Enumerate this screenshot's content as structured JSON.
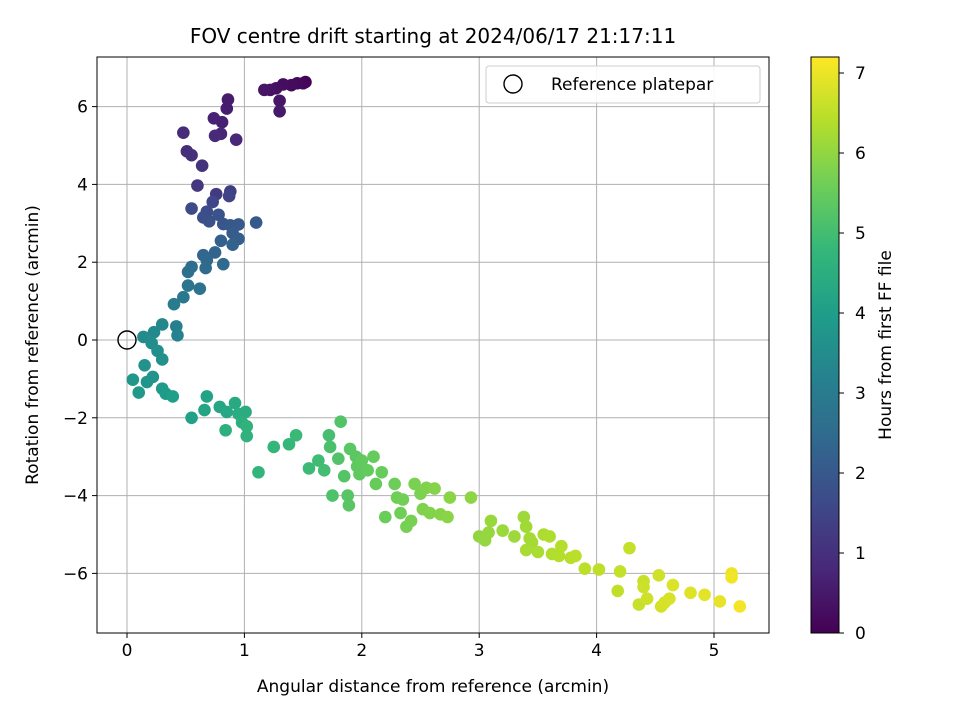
{
  "chart_data": {
    "type": "scatter",
    "title": "FOV centre drift starting at 2024/06/17 21:17:11",
    "xlabel": "Angular distance from reference (arcmin)",
    "ylabel": "Rotation from reference (arcmin)",
    "xlim": [
      -0.26,
      5.47
    ],
    "ylim": [
      -7.5,
      7.3
    ],
    "xticks": [
      "0",
      "1",
      "2",
      "3",
      "4",
      "5"
    ],
    "yticks": [
      "−6",
      "−4",
      "−2",
      "0",
      "2",
      "4",
      "6"
    ],
    "grid": true,
    "legend": {
      "placement": "top-right",
      "entries": [
        "Reference platepar"
      ]
    },
    "reference_point": {
      "x": 0,
      "y": 0
    },
    "colorbar": {
      "label": "Hours from first FF file",
      "range": [
        0,
        7.2
      ],
      "ticks": [
        "0",
        "1",
        "2",
        "3",
        "4",
        "5",
        "6",
        "7"
      ],
      "colormap": [
        "#440154",
        "#482878",
        "#3e4989",
        "#31688e",
        "#26828e",
        "#1f9e89",
        "#35b779",
        "#6ece58",
        "#b5de2b",
        "#fde725"
      ]
    },
    "points": [
      [
        1.52,
        6.63,
        0.05
      ],
      [
        1.5,
        6.6,
        0.1
      ],
      [
        1.45,
        6.6,
        0.15
      ],
      [
        1.4,
        6.55,
        0.2
      ],
      [
        1.33,
        6.57,
        0.25
      ],
      [
        1.27,
        6.47,
        0.3
      ],
      [
        1.22,
        6.43,
        0.35
      ],
      [
        1.17,
        6.43,
        0.4
      ],
      [
        1.3,
        6.15,
        0.45
      ],
      [
        1.3,
        5.88,
        0.5
      ],
      [
        0.86,
        6.18,
        0.55
      ],
      [
        0.85,
        5.95,
        0.6
      ],
      [
        0.81,
        5.6,
        0.65
      ],
      [
        0.74,
        5.7,
        0.7
      ],
      [
        0.8,
        5.3,
        0.75
      ],
      [
        0.93,
        5.15,
        0.8
      ],
      [
        0.75,
        5.25,
        0.85
      ],
      [
        0.48,
        5.33,
        0.9
      ],
      [
        0.51,
        4.85,
        0.95
      ],
      [
        0.55,
        4.75,
        1.0
      ],
      [
        0.64,
        4.48,
        1.05
      ],
      [
        0.6,
        3.97,
        1.15
      ],
      [
        0.76,
        3.75,
        1.25
      ],
      [
        0.88,
        3.82,
        1.35
      ],
      [
        0.87,
        3.7,
        1.45
      ],
      [
        0.73,
        3.55,
        1.55
      ],
      [
        0.55,
        3.38,
        1.65
      ],
      [
        0.68,
        3.3,
        1.7
      ],
      [
        0.65,
        3.15,
        1.75
      ],
      [
        0.7,
        3.05,
        1.8
      ],
      [
        0.78,
        3.22,
        1.85
      ],
      [
        0.82,
        2.98,
        1.9
      ],
      [
        0.88,
        2.95,
        1.95
      ],
      [
        0.95,
        2.97,
        2.0
      ],
      [
        1.1,
        3.02,
        2.05
      ],
      [
        0.9,
        2.75,
        2.1
      ],
      [
        0.95,
        2.6,
        2.15
      ],
      [
        0.8,
        2.55,
        2.2
      ],
      [
        0.9,
        2.45,
        2.25
      ],
      [
        0.75,
        2.25,
        2.3
      ],
      [
        0.65,
        2.18,
        2.35
      ],
      [
        0.68,
        2.05,
        2.4
      ],
      [
        0.82,
        1.95,
        2.45
      ],
      [
        0.67,
        1.85,
        2.5
      ],
      [
        0.55,
        1.88,
        2.55
      ],
      [
        0.52,
        1.75,
        2.6
      ],
      [
        0.62,
        1.32,
        2.7
      ],
      [
        0.52,
        1.4,
        2.8
      ],
      [
        0.48,
        1.1,
        2.9
      ],
      [
        0.4,
        0.92,
        3.0
      ],
      [
        0.42,
        0.35,
        3.1
      ],
      [
        0.43,
        0.12,
        3.2
      ],
      [
        0.3,
        0.4,
        3.3
      ],
      [
        0.23,
        0.2,
        3.4
      ],
      [
        0.14,
        0.08,
        3.45
      ],
      [
        0.21,
        -0.08,
        3.5
      ],
      [
        0.26,
        -0.28,
        3.55
      ],
      [
        0.3,
        -0.5,
        3.6
      ],
      [
        0.15,
        -0.65,
        3.65
      ],
      [
        0.22,
        -0.95,
        3.7
      ],
      [
        0.17,
        -1.08,
        3.75
      ],
      [
        0.05,
        -1.02,
        3.8
      ],
      [
        0.1,
        -1.35,
        3.85
      ],
      [
        0.3,
        -1.25,
        3.9
      ],
      [
        0.33,
        -1.38,
        3.95
      ],
      [
        0.39,
        -1.45,
        4.0
      ],
      [
        0.55,
        -2.0,
        4.1
      ],
      [
        0.68,
        -1.45,
        4.15
      ],
      [
        0.66,
        -1.8,
        4.2
      ],
      [
        0.79,
        -1.72,
        4.25
      ],
      [
        0.85,
        -1.85,
        4.3
      ],
      [
        0.92,
        -1.62,
        4.35
      ],
      [
        0.95,
        -1.9,
        4.4
      ],
      [
        1.01,
        -1.85,
        4.45
      ],
      [
        0.98,
        -2.12,
        4.5
      ],
      [
        0.84,
        -2.32,
        4.55
      ],
      [
        1.02,
        -2.47,
        4.6
      ],
      [
        1.02,
        -2.22,
        4.65
      ],
      [
        1.12,
        -3.4,
        4.7
      ],
      [
        1.25,
        -2.75,
        4.75
      ],
      [
        1.38,
        -2.68,
        4.8
      ],
      [
        1.44,
        -2.45,
        4.85
      ],
      [
        1.55,
        -3.3,
        4.9
      ],
      [
        1.63,
        -3.1,
        4.95
      ],
      [
        1.68,
        -3.35,
        5.0
      ],
      [
        1.72,
        -2.45,
        5.05
      ],
      [
        1.73,
        -2.75,
        5.1
      ],
      [
        1.75,
        -4.0,
        5.15
      ],
      [
        1.8,
        -3.05,
        5.2
      ],
      [
        1.82,
        -2.1,
        5.22
      ],
      [
        1.85,
        -3.5,
        5.25
      ],
      [
        1.88,
        -4.0,
        5.28
      ],
      [
        1.89,
        -4.25,
        5.3
      ],
      [
        1.9,
        -2.8,
        5.32
      ],
      [
        1.95,
        -3.0,
        5.35
      ],
      [
        1.96,
        -3.25,
        5.38
      ],
      [
        1.98,
        -3.45,
        5.4
      ],
      [
        2.0,
        -3.1,
        5.43
      ],
      [
        2.05,
        -3.35,
        5.45
      ],
      [
        2.1,
        -3.0,
        5.48
      ],
      [
        2.12,
        -3.7,
        5.5
      ],
      [
        2.17,
        -3.4,
        5.52
      ],
      [
        2.2,
        -4.55,
        5.55
      ],
      [
        2.28,
        -3.7,
        5.58
      ],
      [
        2.3,
        -4.05,
        5.6
      ],
      [
        2.33,
        -4.45,
        5.62
      ],
      [
        2.35,
        -4.1,
        5.65
      ],
      [
        2.38,
        -4.8,
        5.68
      ],
      [
        2.42,
        -4.65,
        5.7
      ],
      [
        2.45,
        -3.7,
        5.72
      ],
      [
        2.5,
        -3.95,
        5.75
      ],
      [
        2.52,
        -4.35,
        5.78
      ],
      [
        2.55,
        -3.8,
        5.8
      ],
      [
        2.58,
        -4.45,
        5.83
      ],
      [
        2.62,
        -3.82,
        5.85
      ],
      [
        2.67,
        -4.48,
        5.87
      ],
      [
        2.73,
        -4.55,
        5.9
      ],
      [
        2.75,
        -4.05,
        5.92
      ],
      [
        2.93,
        -4.05,
        5.95
      ],
      [
        3.0,
        -5.05,
        6.0
      ],
      [
        3.05,
        -5.15,
        6.03
      ],
      [
        3.08,
        -4.95,
        6.05
      ],
      [
        3.1,
        -4.65,
        6.08
      ],
      [
        3.2,
        -4.9,
        6.1
      ],
      [
        3.3,
        -5.05,
        6.13
      ],
      [
        3.38,
        -4.55,
        6.15
      ],
      [
        3.4,
        -4.8,
        6.18
      ],
      [
        3.43,
        -5.1,
        6.2
      ],
      [
        3.45,
        -5.2,
        6.22
      ],
      [
        3.4,
        -5.4,
        6.25
      ],
      [
        3.5,
        -5.45,
        6.28
      ],
      [
        3.55,
        -5.0,
        6.3
      ],
      [
        3.6,
        -5.05,
        6.33
      ],
      [
        3.62,
        -5.5,
        6.35
      ],
      [
        3.68,
        -5.55,
        6.38
      ],
      [
        3.7,
        -5.3,
        6.4
      ],
      [
        3.78,
        -5.6,
        6.42
      ],
      [
        3.82,
        -5.55,
        6.45
      ],
      [
        3.9,
        -5.88,
        6.48
      ],
      [
        4.02,
        -5.9,
        6.5
      ],
      [
        4.18,
        -6.45,
        6.53
      ],
      [
        4.2,
        -5.95,
        6.55
      ],
      [
        4.28,
        -5.35,
        6.58
      ],
      [
        4.36,
        -6.8,
        6.6
      ],
      [
        4.4,
        -6.2,
        6.62
      ],
      [
        4.4,
        -6.35,
        6.65
      ],
      [
        4.43,
        -6.65,
        6.68
      ],
      [
        4.53,
        -6.05,
        6.7
      ],
      [
        4.55,
        -6.85,
        6.73
      ],
      [
        4.58,
        -6.75,
        6.75
      ],
      [
        4.62,
        -6.65,
        6.78
      ],
      [
        4.65,
        -6.3,
        6.82
      ],
      [
        4.8,
        -6.5,
        6.85
      ],
      [
        4.92,
        -6.55,
        6.9
      ],
      [
        5.05,
        -6.72,
        6.95
      ],
      [
        5.15,
        -6.0,
        7.0
      ],
      [
        5.15,
        -6.1,
        7.05
      ],
      [
        5.22,
        -6.85,
        7.1
      ]
    ]
  }
}
